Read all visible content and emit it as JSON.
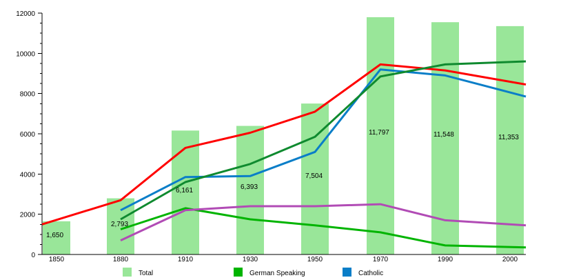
{
  "chart_data": {
    "type": "bar",
    "categories": [
      "1850",
      "1880",
      "1910",
      "1930",
      "1950",
      "1970",
      "1990",
      "2000"
    ],
    "x": [
      1850,
      1880,
      1910,
      1930,
      1950,
      1970,
      1990,
      2000
    ],
    "ylim": [
      0,
      12000
    ],
    "yticks": [
      "0",
      "2000",
      "4000",
      "6000",
      "8000",
      "10000",
      "12000"
    ],
    "grid": false,
    "legend_position": "bottom",
    "series": [
      {
        "name": "Total",
        "kind": "bar",
        "color": "#99e699",
        "values": [
          1650,
          2793,
          6161,
          6393,
          7504,
          11797,
          11548,
          11353
        ],
        "labels": [
          "1,650",
          "2,793",
          "6,161",
          "6,393",
          "7,504",
          "11,797",
          "11,548",
          "11,353"
        ]
      },
      {
        "name": "German Speaking",
        "kind": "line",
        "color": "#00b400",
        "values": [
          null,
          1250,
          2300,
          1750,
          1450,
          1100,
          450,
          350
        ]
      },
      {
        "name": "Catholic",
        "kind": "line",
        "color": "#0a7ec8",
        "values": [
          null,
          2200,
          3850,
          3900,
          5100,
          9200,
          8900,
          7850
        ]
      },
      {
        "kind": "line",
        "color": "#ff0000",
        "values": [
          1500,
          2700,
          5300,
          6050,
          7100,
          9450,
          9150,
          8450
        ]
      },
      {
        "kind": "line",
        "color": "#0f8a2f",
        "values": [
          null,
          1750,
          3600,
          4500,
          5850,
          8850,
          9450,
          9600
        ]
      },
      {
        "kind": "line",
        "color": "#b14bb5",
        "values": [
          null,
          700,
          2200,
          2400,
          2400,
          2500,
          1700,
          1450
        ]
      }
    ]
  }
}
